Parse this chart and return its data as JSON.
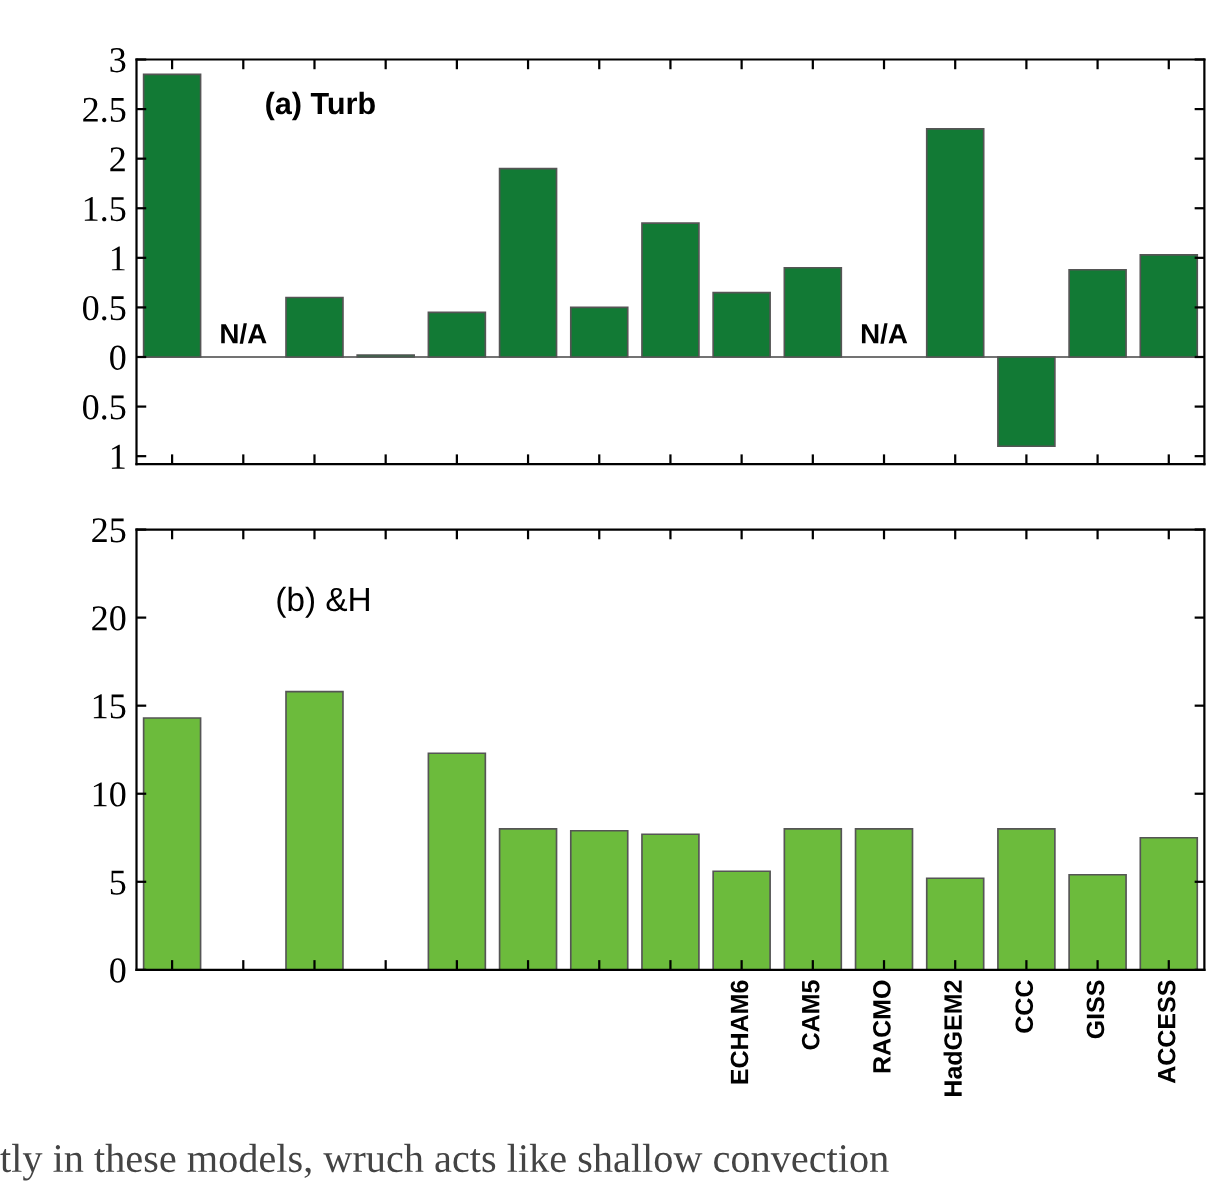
{
  "chart_data": [
    {
      "type": "bar",
      "title": "(a) Turb",
      "categories": [
        null,
        null,
        null,
        null,
        null,
        null,
        null,
        null,
        null,
        null,
        null,
        null,
        null,
        null,
        null
      ],
      "values": [
        2.85,
        null,
        0.6,
        0.02,
        0.45,
        1.9,
        0.5,
        1.35,
        0.65,
        0.9,
        null,
        2.3,
        -0.9,
        0.88,
        1.03
      ],
      "color": "#127a35",
      "ylim": [
        -1.08,
        3
      ],
      "yticks": [
        {
          "value": -1,
          "label": "1"
        },
        {
          "value": -0.5,
          "label": "0.5"
        },
        0,
        0.5,
        1,
        1.5,
        2,
        2.5,
        3
      ],
      "annotations": [
        "N/A",
        "N/A"
      ],
      "ref_lines": [
        {
          "axis": "y",
          "value": 0
        }
      ],
      "grid": false
    },
    {
      "type": "bar",
      "title": "(b) &H",
      "categories": [
        null,
        null,
        null,
        null,
        null,
        null,
        null,
        null,
        "ECHAM6",
        "CAM5",
        "RACMO",
        "HadGEM2",
        "CCC",
        "GISS",
        "ACCESS"
      ],
      "values": [
        14.3,
        null,
        15.8,
        null,
        12.3,
        8,
        7.9,
        7.7,
        5.6,
        8,
        8,
        5.2,
        8,
        5.4,
        7.5
      ],
      "color": "#6cbb3c",
      "ylim": [
        0,
        25
      ],
      "yticks": [
        0,
        5,
        10,
        15,
        20,
        25
      ],
      "annotations": [
        "tly in these models, wruch acts like shallow convection"
      ],
      "grid": false
    }
  ]
}
